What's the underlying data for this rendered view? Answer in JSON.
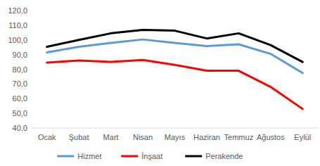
{
  "chart_data": {
    "type": "line",
    "categories": [
      "Ocak",
      "Şubat",
      "Mart",
      "Nisan",
      "Mayıs",
      "Haziran",
      "Temmuz",
      "Ağustos",
      "Eylül"
    ],
    "series": [
      {
        "name": "Hizmet",
        "color": "#5b9bd5",
        "values": [
          91.5,
          95.3,
          98.0,
          100.3,
          98.0,
          95.8,
          97.0,
          90.5,
          77.5
        ]
      },
      {
        "name": "İnşaat",
        "color": "#ff0000",
        "values": [
          84.5,
          86.0,
          85.0,
          86.3,
          83.0,
          79.0,
          79.0,
          68.0,
          53.0
        ]
      },
      {
        "name": "Perakende",
        "color": "#000000",
        "values": [
          95.3,
          100.0,
          104.5,
          106.8,
          106.3,
          101.0,
          104.5,
          96.5,
          85.0
        ]
      }
    ],
    "ylim": [
      40,
      120
    ],
    "yticks": [
      {
        "value": 40,
        "label": "40,0"
      },
      {
        "value": 50,
        "label": "50,0"
      },
      {
        "value": 60,
        "label": "60,0"
      },
      {
        "value": 70,
        "label": "70,0"
      },
      {
        "value": 80,
        "label": "80,0"
      },
      {
        "value": 90,
        "label": "90,0"
      },
      {
        "value": 100,
        "label": "100,0"
      },
      {
        "value": 110,
        "label": "110,0"
      },
      {
        "value": 120,
        "label": "120,0"
      }
    ],
    "grid": false,
    "legend": "bottom"
  }
}
